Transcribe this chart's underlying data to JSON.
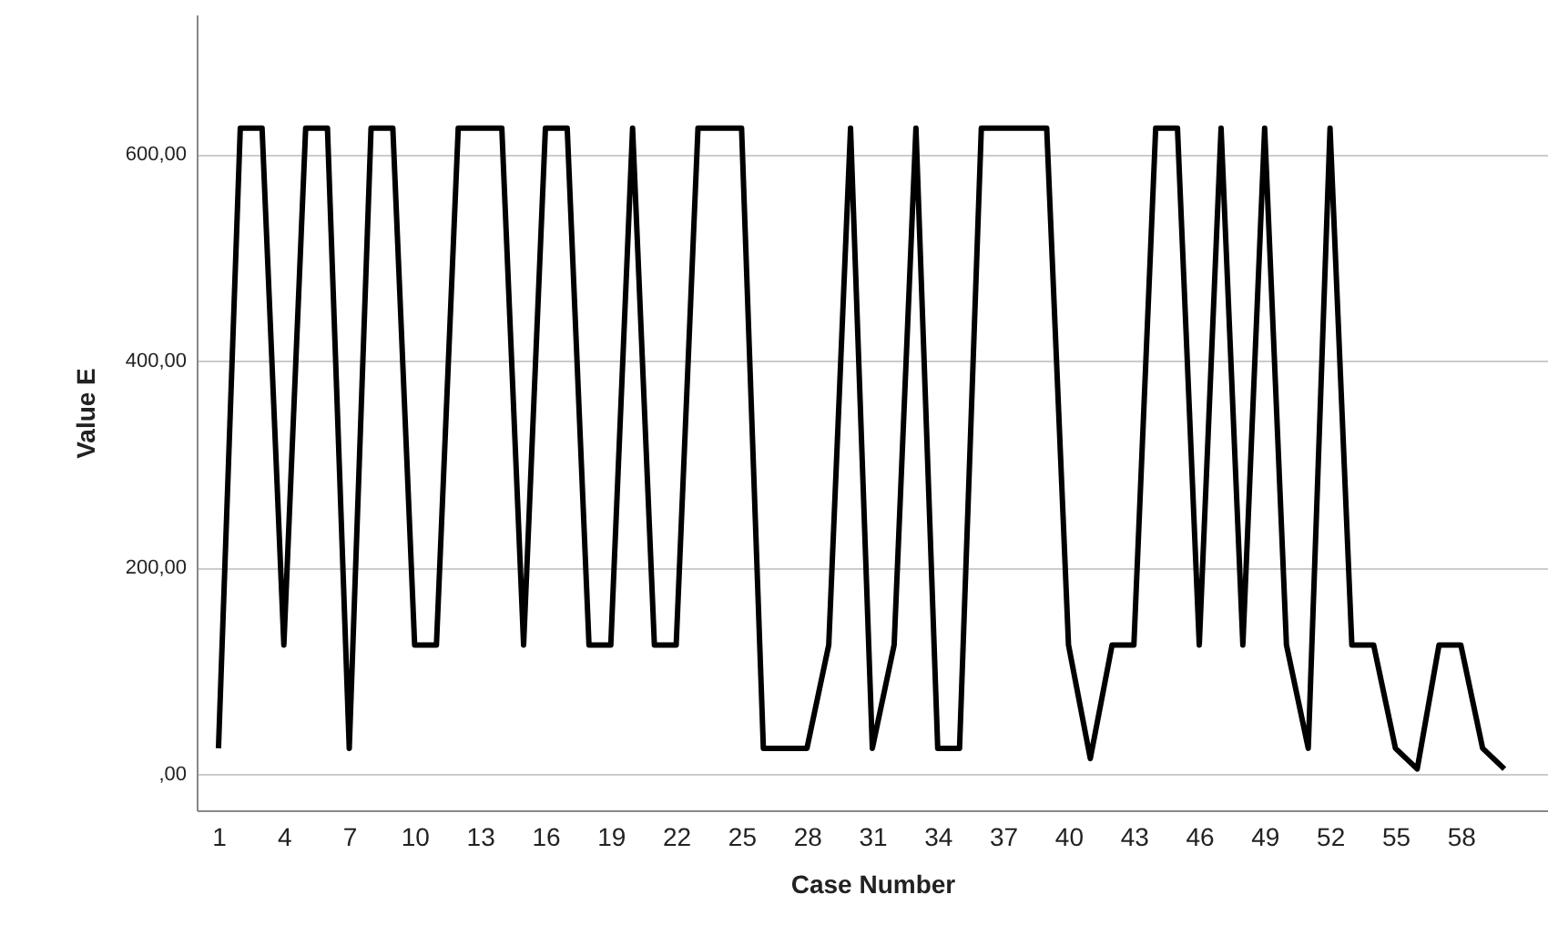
{
  "chart_data": {
    "type": "line",
    "xlabel": "Case Number",
    "ylabel": "Value E",
    "x": [
      1,
      2,
      3,
      4,
      5,
      6,
      7,
      8,
      9,
      10,
      11,
      12,
      13,
      14,
      15,
      16,
      17,
      18,
      19,
      20,
      21,
      22,
      23,
      24,
      25,
      26,
      27,
      28,
      29,
      30,
      31,
      32,
      33,
      34,
      35,
      36,
      37,
      38,
      39,
      40,
      41,
      42,
      43,
      44,
      45,
      46,
      47,
      48,
      49,
      50,
      51,
      52,
      53,
      54,
      55,
      56,
      57,
      58,
      59,
      60
    ],
    "series": [
      {
        "color": "#000000",
        "values": [
          25,
          625,
          625,
          125,
          625,
          625,
          25,
          625,
          625,
          125,
          125,
          625,
          625,
          625,
          125,
          625,
          625,
          125,
          125,
          625,
          125,
          125,
          625,
          625,
          625,
          25,
          25,
          25,
          125,
          625,
          25,
          125,
          625,
          25,
          25,
          625,
          625,
          625,
          625,
          125,
          15,
          125,
          125,
          625,
          625,
          125,
          625,
          125,
          625,
          125,
          25,
          625,
          125,
          125,
          25,
          5,
          125,
          125,
          25,
          5
        ]
      }
    ],
    "xlim": [
      0,
      62
    ],
    "xticks": [
      1,
      4,
      7,
      10,
      13,
      16,
      19,
      22,
      25,
      28,
      31,
      34,
      37,
      40,
      43,
      46,
      49,
      52,
      55,
      58
    ],
    "ylim": [
      -35,
      735
    ],
    "yticks": [
      {
        "value": 0,
        "label": ",00"
      },
      {
        "value": 200,
        "label": "200,00"
      },
      {
        "value": 400,
        "label": "400,00"
      },
      {
        "value": 600,
        "label": "600,00"
      }
    ],
    "grid": "y",
    "marker": "none",
    "line_style": "solid"
  }
}
